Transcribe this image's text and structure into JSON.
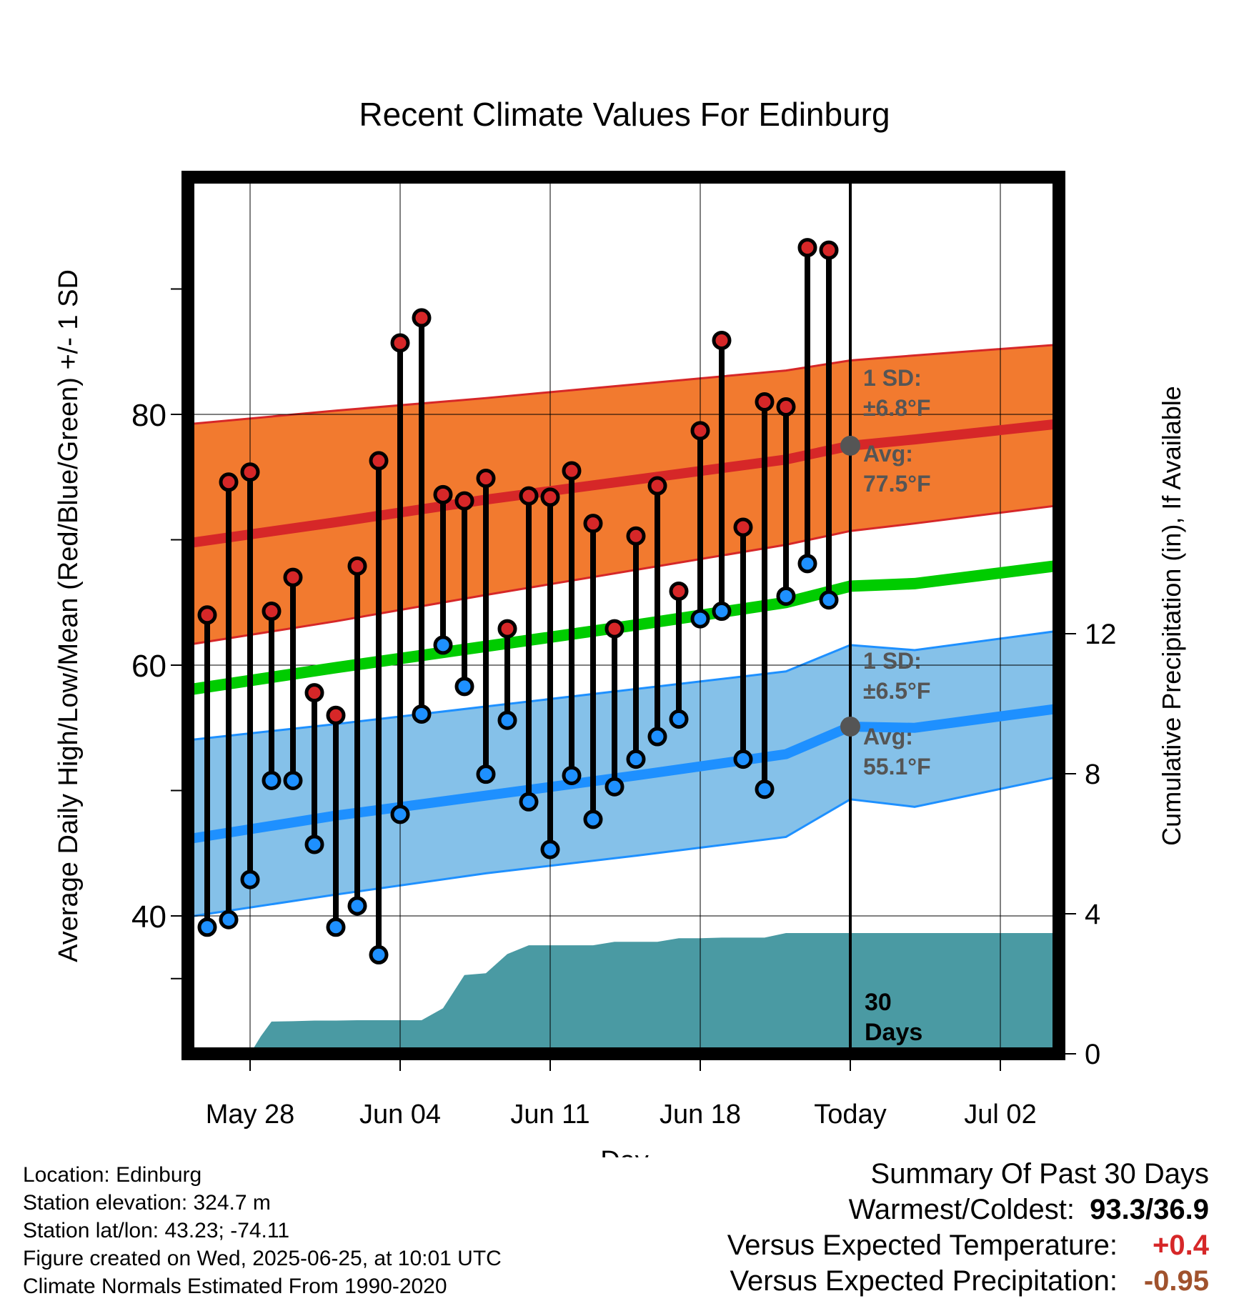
{
  "chart_data": {
    "type": "line",
    "title": "Recent Climate Values For Edinburg",
    "xlabel": "Day",
    "ylabel": "Average Daily High/Low/Mean (Red/Blue/Green) +/- 1 SD",
    "ylabel_right": "Cumulative Precipitation (in), If Available",
    "x_tick_labels": [
      "May 28",
      "Jun 04",
      "Jun 11",
      "Jun 18",
      "Today",
      "Jul 02"
    ],
    "y_ticks_left": [
      "40",
      "60",
      "80"
    ],
    "y_ticks_right": [
      "0",
      "4",
      "8",
      "12"
    ],
    "ylim_left": [
      29.6,
      100
    ],
    "ylim_right": [
      0,
      25
    ],
    "xlim_days": [
      -31,
      10
    ],
    "colors": {
      "high": "#d62728",
      "low": "#1e90ff",
      "mean": "#00cc00",
      "high_band": "#f27a2f",
      "low_band": "#85c1e9",
      "precip": "#4a9aa3"
    },
    "normals": {
      "day": [
        -31,
        -24,
        -17,
        -10,
        -3,
        0,
        3,
        10
      ],
      "high_mean": [
        69.7,
        71.4,
        73.2,
        74.8,
        76.4,
        77.5,
        78.0,
        79.3
      ],
      "high_upper": [
        79.2,
        80.3,
        81.3,
        82.4,
        83.5,
        84.3,
        84.7,
        85.6
      ],
      "high_lower": [
        61.6,
        63.5,
        65.6,
        67.6,
        69.6,
        70.7,
        71.3,
        72.8
      ],
      "low_mean": [
        46.1,
        48.0,
        49.6,
        51.2,
        52.9,
        55.1,
        55.0,
        56.6
      ],
      "low_upper": [
        54.0,
        55.3,
        56.7,
        58.1,
        59.5,
        61.6,
        61.2,
        62.8
      ],
      "low_lower": [
        39.9,
        41.7,
        43.4,
        44.8,
        46.3,
        49.3,
        48.7,
        51.2
      ],
      "mean": [
        58.0,
        59.8,
        61.5,
        63.2,
        65.0,
        66.3,
        66.5,
        68.0
      ]
    },
    "observations": {
      "day": [
        -30,
        -29,
        -28,
        -27,
        -26,
        -25,
        -24,
        -23,
        -22,
        -21,
        -20,
        -19,
        -18,
        -17,
        -16,
        -15,
        -14,
        -13,
        -12,
        -11,
        -10,
        -9,
        -8,
        -7,
        -6,
        -5,
        -4,
        -3,
        -2,
        -1
      ],
      "high": [
        64.0,
        74.6,
        75.4,
        64.3,
        67.0,
        57.8,
        56.0,
        67.9,
        76.3,
        85.7,
        87.7,
        73.6,
        73.1,
        74.9,
        62.9,
        73.5,
        73.4,
        75.5,
        71.3,
        62.9,
        70.3,
        74.3,
        65.9,
        78.7,
        85.9,
        71.0,
        81.0,
        80.6,
        93.3,
        93.1
      ],
      "low": [
        39.1,
        39.7,
        42.9,
        50.8,
        50.8,
        45.7,
        39.1,
        40.8,
        36.9,
        48.1,
        56.1,
        61.6,
        58.3,
        51.3,
        55.6,
        49.1,
        45.3,
        51.2,
        47.7,
        50.3,
        52.5,
        54.3,
        55.7,
        63.7,
        64.3,
        52.5,
        50.1,
        65.5,
        68.1,
        65.2
      ]
    },
    "precipitation": {
      "day": [
        -28,
        -27.5,
        -27,
        -26,
        -25,
        -24,
        -23,
        -22,
        -21,
        -20,
        -19,
        -18,
        -17,
        -16,
        -15,
        -14,
        -13,
        -12,
        -11,
        -10,
        -9,
        -8,
        -7,
        -6,
        -5,
        -4,
        -3,
        -2,
        -1,
        0,
        10
      ],
      "cumulative": [
        0,
        0.5,
        0.92,
        0.93,
        0.95,
        0.95,
        0.96,
        0.96,
        0.96,
        0.96,
        1.3,
        2.25,
        2.3,
        2.85,
        3.1,
        3.1,
        3.1,
        3.1,
        3.2,
        3.2,
        3.2,
        3.3,
        3.3,
        3.32,
        3.32,
        3.32,
        3.45,
        3.45,
        3.45,
        3.45,
        3.45
      ]
    },
    "today_summary": {
      "high_sd_label": "1 SD:",
      "high_sd_value": "±6.8°F",
      "high_avg_label": "Avg:",
      "high_avg_value": "77.5°F",
      "low_sd_label": "1 SD:",
      "low_sd_value": "±6.5°F",
      "low_avg_label": "Avg:",
      "low_avg_value": "55.1°F",
      "window_label_1": "30",
      "window_label_2": "Days",
      "high_avg": 77.5,
      "low_avg": 55.1
    }
  },
  "footer": {
    "location": "Location: Edinburg",
    "elevation": "Station elevation: 324.7 m",
    "latlon": "Station lat/lon: 43.23; -74.11",
    "created": "Figure created on Wed, 2025-06-25, at 10:01 UTC",
    "normals": "Climate Normals Estimated From 1990-2020"
  },
  "summary": {
    "title": "Summary Of Past 30 Days",
    "warmest_label": "Warmest/Coldest:",
    "warmest_value": "93.3/36.9",
    "temp_label": "Versus Expected Temperature:",
    "temp_value": "+0.4",
    "temp_color": "#d62728",
    "precip_label": "Versus Expected Precipitation:",
    "precip_value": "-0.95",
    "precip_color": "#a0522d"
  }
}
